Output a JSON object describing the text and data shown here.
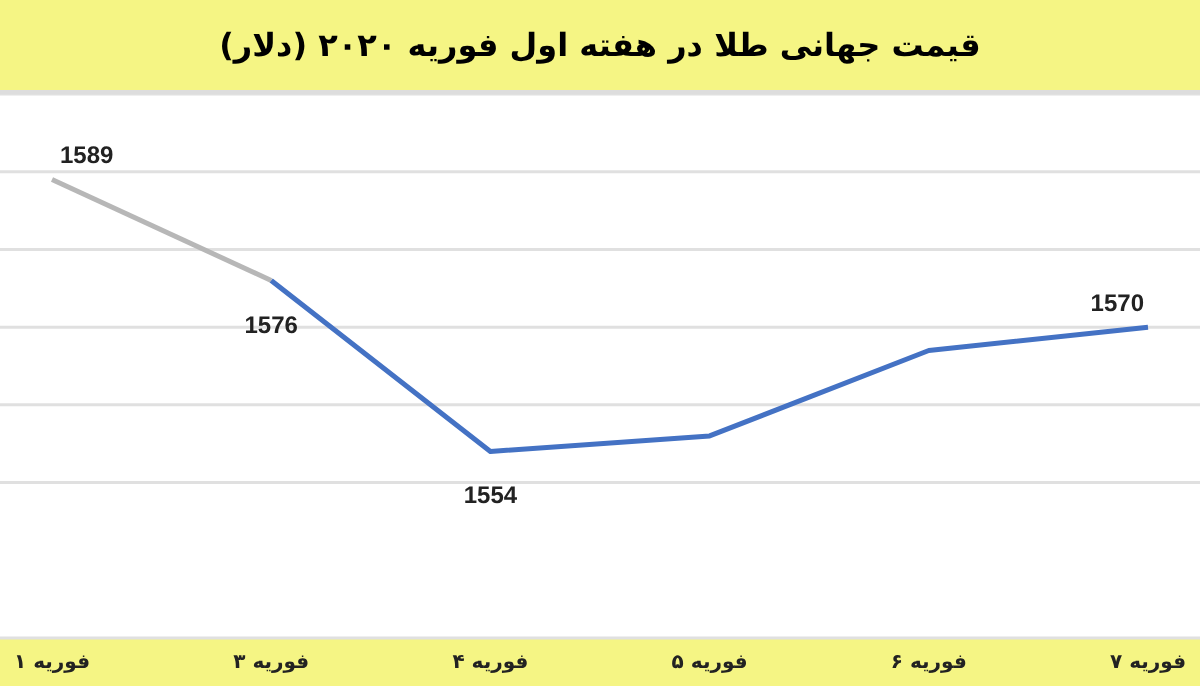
{
  "chart_data": {
    "type": "line",
    "title": "قیمت جهانی طلا در هفته اول فوریه ۲۰۲۰ (دلار)",
    "categories": [
      "۱ فوریه",
      "۳ فوریه",
      "۴ فوریه",
      "۵ فوریه",
      "۶ فوریه",
      "۷ فوریه"
    ],
    "series": [
      {
        "color": "#b7b7b7",
        "values": [
          1589,
          1576,
          null,
          null,
          null,
          null
        ],
        "value_labels": [
          "1589",
          null,
          null,
          null,
          null,
          null
        ]
      },
      {
        "color": "#4472c4",
        "values": [
          null,
          1576,
          1554,
          1556,
          1567,
          1570
        ],
        "value_labels": [
          null,
          "1576",
          "1554",
          null,
          null,
          "1570"
        ]
      }
    ],
    "ylim": [
      1530,
      1600
    ],
    "yticks": [
      {
        "value": 1550,
        "label": null
      },
      {
        "value": 1560,
        "label": null
      },
      {
        "value": 1570,
        "label": null
      },
      {
        "value": 1580,
        "label": null
      },
      {
        "value": 1590,
        "label": null
      }
    ],
    "grid": "y",
    "tick_labels": "x",
    "marker": "none",
    "line_style": "solid"
  }
}
